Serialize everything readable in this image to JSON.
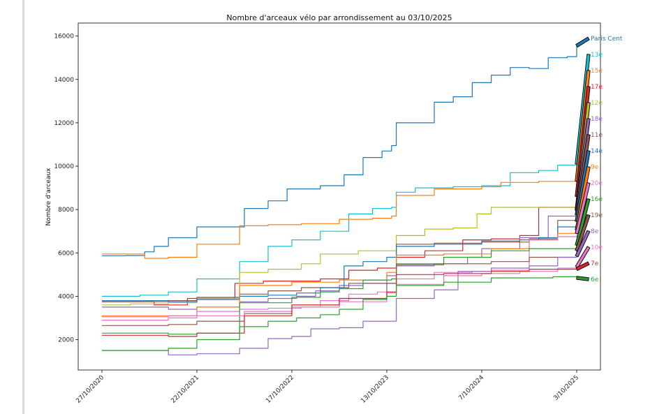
{
  "chart_data": {
    "type": "line",
    "title": "Nombre d'arceaux vélo par arrondissement au 03/10/2025",
    "xlabel": "",
    "ylabel": "Nombre d'arceaux",
    "ylim": [
      600,
      16600
    ],
    "yticks": [
      2000,
      4000,
      6000,
      8000,
      10000,
      12000,
      14000,
      16000
    ],
    "x_ticks": [
      "27/10/2020",
      "22/10/2021",
      "17/10/2022",
      "13/10/2023",
      "7/10/2024",
      "3/10/2025"
    ],
    "x_domain": [
      -0.25,
      5.25
    ],
    "series": [
      {
        "name": "Paris Cent",
        "color": "#1f77b4",
        "end": 15550,
        "x": [
          0,
          0.25,
          0.45,
          0.55,
          0.7,
          1.0,
          1.5,
          1.75,
          1.95,
          2.3,
          2.55,
          2.75,
          2.95,
          3.05,
          3.1,
          3.4,
          3.5,
          3.7,
          3.9,
          4.1,
          4.3,
          4.5,
          4.7,
          4.9,
          5.0
        ],
        "y": [
          5870,
          5880,
          6050,
          6300,
          6700,
          7200,
          8050,
          8400,
          8950,
          9100,
          9600,
          10400,
          10700,
          10950,
          12000,
          12000,
          12950,
          13200,
          13850,
          14200,
          14550,
          14500,
          15000,
          15050,
          15550
        ]
      },
      {
        "name": "13e",
        "color": "#17becf",
        "end": 10100,
        "x": [
          0,
          0.4,
          0.7,
          1.0,
          1.45,
          1.75,
          2.0,
          2.3,
          2.6,
          2.85,
          3.05,
          3.1,
          3.3,
          3.7,
          4.0,
          4.3,
          4.6,
          4.8,
          5.0
        ],
        "y": [
          4000,
          4050,
          4200,
          4800,
          5600,
          6300,
          6600,
          7000,
          7800,
          8050,
          8100,
          8800,
          9000,
          9050,
          9100,
          9700,
          9800,
          10050,
          10100
        ]
      },
      {
        "name": "15e",
        "color": "#ff7f0e",
        "end": 9300,
        "x": [
          0,
          0.3,
          0.45,
          0.7,
          1.0,
          1.45,
          1.75,
          2.1,
          2.5,
          2.85,
          3.05,
          3.1,
          3.5,
          4.0,
          4.2,
          4.6,
          5.0
        ],
        "y": [
          5950,
          5950,
          5750,
          5800,
          6400,
          7250,
          7300,
          7350,
          7550,
          7600,
          7700,
          8650,
          8950,
          9050,
          9250,
          9300,
          9300
        ]
      },
      {
        "name": "17e",
        "color": "#d62728",
        "end": 8600,
        "x": [
          0,
          0.3,
          0.55,
          0.9,
          1.4,
          1.7,
          2.0,
          2.3,
          2.6,
          2.9,
          3.1,
          3.4,
          3.8,
          4.1,
          4.4,
          4.6,
          5.0
        ],
        "y": [
          3750,
          3750,
          3600,
          3900,
          4600,
          4700,
          4700,
          4800,
          5200,
          5300,
          5800,
          6100,
          6600,
          6650,
          6800,
          8100,
          8600
        ]
      },
      {
        "name": "12e",
        "color": "#bcbd22",
        "end": 8000,
        "x": [
          0,
          0.3,
          0.7,
          1.0,
          1.45,
          1.75,
          2.1,
          2.3,
          2.7,
          3.05,
          3.1,
          3.4,
          3.7,
          3.95,
          4.1,
          4.5,
          5.0
        ],
        "y": [
          3600,
          3650,
          3700,
          3900,
          5100,
          5250,
          5500,
          5950,
          6100,
          6100,
          6800,
          7100,
          7150,
          7800,
          8100,
          8100,
          8000
        ]
      },
      {
        "name": "18e",
        "color": "#9467bd",
        "end": 7950,
        "x": [
          0,
          0.4,
          0.7,
          1.0,
          1.45,
          1.75,
          2.05,
          2.25,
          2.5,
          2.75,
          3.0,
          3.1,
          3.5,
          3.85,
          4.0,
          4.4,
          4.7,
          5.0
        ],
        "y": [
          3500,
          3500,
          3400,
          3500,
          3750,
          3900,
          4000,
          4250,
          4500,
          4600,
          4950,
          5400,
          5500,
          5800,
          6200,
          6700,
          7700,
          7950
        ]
      },
      {
        "name": "11e",
        "color": "#8c564b",
        "end": 7750,
        "x": [
          0,
          0.35,
          0.7,
          1.0,
          1.45,
          1.75,
          2.1,
          2.6,
          3.1,
          3.5,
          4.0,
          4.5,
          4.8,
          5.0
        ],
        "y": [
          3750,
          3750,
          3800,
          3950,
          4100,
          4250,
          4400,
          4600,
          6400,
          6450,
          6500,
          6650,
          7500,
          7750
        ]
      },
      {
        "name": "14e",
        "color": "#1f77b4",
        "end": 7450,
        "x": [
          0,
          0.35,
          0.7,
          1.0,
          1.45,
          1.75,
          2.05,
          2.3,
          2.55,
          2.75,
          3.0,
          3.1,
          3.5,
          4.0,
          4.4,
          4.6,
          4.8,
          5.0
        ],
        "y": [
          3800,
          3800,
          3750,
          3850,
          4000,
          4050,
          4150,
          4400,
          5400,
          5600,
          5800,
          6300,
          6400,
          6550,
          6600,
          6700,
          7200,
          7450
        ]
      },
      {
        "name": "9e",
        "color": "#ff7f0e",
        "end": 7050,
        "x": [
          0,
          0.4,
          1.0,
          1.45,
          2.0,
          2.5,
          3.0,
          3.1,
          3.6,
          4.1,
          4.5,
          4.8,
          5.0
        ],
        "y": [
          3100,
          3100,
          3500,
          4500,
          4650,
          4750,
          5100,
          5900,
          5950,
          6200,
          6600,
          6900,
          7050
        ]
      },
      {
        "name": "20e",
        "color": "#e377c2",
        "end": 6900,
        "x": [
          0,
          0.3,
          0.7,
          1.0,
          1.45,
          1.75,
          2.1,
          2.3,
          2.6,
          2.9,
          3.1,
          3.5,
          3.9,
          4.1,
          4.5,
          4.8,
          5.0
        ],
        "y": [
          3050,
          3050,
          3100,
          3300,
          3400,
          3450,
          3500,
          3800,
          4100,
          4200,
          4800,
          5100,
          5150,
          5200,
          6600,
          6750,
          6900
        ]
      },
      {
        "name": "16e",
        "color": "#2ca02c",
        "end": 6350,
        "x": [
          0,
          0.35,
          0.7,
          1.0,
          1.45,
          2.0,
          2.3,
          2.5,
          2.75,
          3.05,
          3.1,
          3.6,
          4.1,
          4.5,
          5.0
        ],
        "y": [
          2300,
          2300,
          2250,
          2300,
          3700,
          3950,
          4200,
          4350,
          4750,
          4800,
          5500,
          5800,
          6100,
          6200,
          6350
        ]
      },
      {
        "name": "19e",
        "color": "#8c564b",
        "end": 6100,
        "x": [
          0,
          0.35,
          0.7,
          1.0,
          1.5,
          2.0,
          2.5,
          3.0,
          3.1,
          3.6,
          4.1,
          4.5,
          5.0
        ],
        "y": [
          2650,
          2650,
          2700,
          2850,
          3200,
          3600,
          3900,
          4600,
          5450,
          5500,
          5600,
          5800,
          6100
        ]
      },
      {
        "name": "8e",
        "color": "#9467bd",
        "end": 5850,
        "x": [
          0,
          0.4,
          0.7,
          1.0,
          1.45,
          1.75,
          2.0,
          2.2,
          2.5,
          2.75,
          3.0,
          3.1,
          3.5,
          3.75,
          4.1,
          4.5,
          4.8,
          5.0
        ],
        "y": [
          1500,
          1500,
          1300,
          1350,
          1600,
          2050,
          2150,
          2500,
          2550,
          2850,
          2850,
          3900,
          4300,
          5150,
          5300,
          5400,
          5800,
          5850
        ]
      },
      {
        "name": "10e",
        "color": "#e377c2",
        "end": 5350,
        "x": [
          0,
          0.35,
          0.7,
          1.0,
          1.5,
          2.0,
          2.5,
          3.0,
          3.1,
          3.6,
          4.0,
          4.4,
          4.8,
          5.0
        ],
        "y": [
          2900,
          2900,
          3000,
          3100,
          3300,
          3500,
          3750,
          4150,
          4550,
          4950,
          5050,
          5150,
          5300,
          5350
        ]
      },
      {
        "name": "7e",
        "color": "#d62728",
        "end": 5250,
        "x": [
          0,
          0.4,
          0.7,
          1.0,
          1.5,
          2.0,
          2.5,
          3.0,
          3.1,
          3.6,
          4.1,
          4.5,
          5.0
        ],
        "y": [
          2200,
          2200,
          2150,
          2300,
          3100,
          3600,
          3900,
          4200,
          5000,
          5050,
          5150,
          5250,
          5250
        ]
      },
      {
        "name": "6e",
        "color": "#2ca02c",
        "end": 4850,
        "x": [
          0,
          0.35,
          0.7,
          1.0,
          1.45,
          1.75,
          2.05,
          2.3,
          2.5,
          2.75,
          3.0,
          3.1,
          3.6,
          4.1,
          4.5,
          4.75,
          5.0
        ],
        "y": [
          1500,
          1500,
          1600,
          2000,
          2600,
          2850,
          3000,
          3150,
          3400,
          3850,
          4000,
          4500,
          4650,
          4850,
          4850,
          4900,
          4850
        ]
      }
    ]
  }
}
